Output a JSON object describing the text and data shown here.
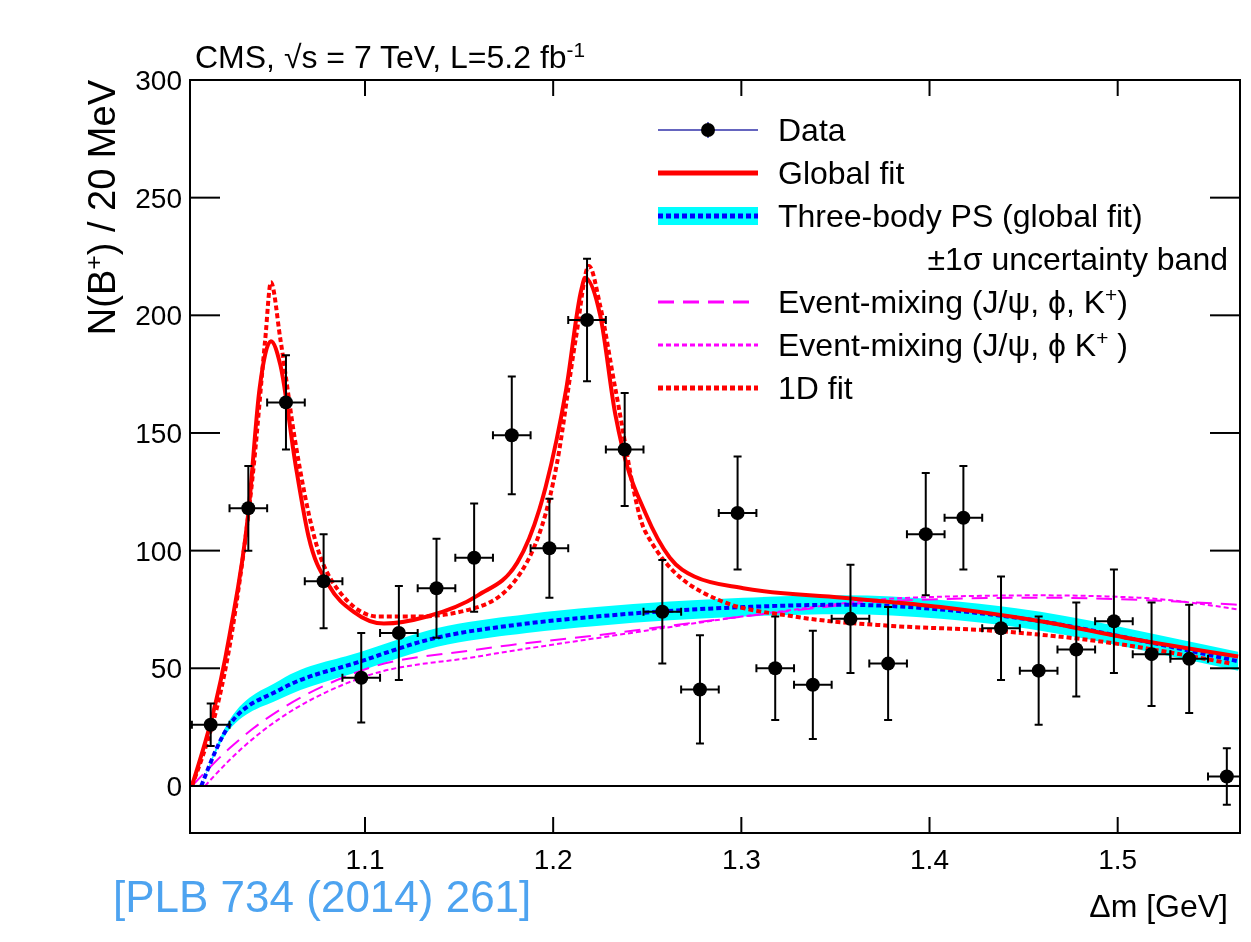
{
  "chart_data": {
    "type": "scatter",
    "title": "CMS, √s = 7 TeV, L=5.2 fb$^{-1}$",
    "xlabel": "Δm [GeV]",
    "ylabel": "N(B$^{+}$) / 20 MeV",
    "annotations": [
      "[PLB 734 (2014) 261]"
    ],
    "xlim": [
      1.007,
      1.565
    ],
    "xticks": [
      1.1,
      1.2,
      1.3,
      1.4,
      1.5
    ],
    "ylim": [
      -20,
      300
    ],
    "yticks": [
      0,
      50,
      100,
      150,
      200,
      250,
      300
    ],
    "grid": false,
    "legend": "top right",
    "ref_lines": [
      {
        "axis": "y",
        "value": 0,
        "color": "#000000"
      }
    ],
    "series": [
      {
        "name": "Data",
        "color": "#000000",
        "marker": "circle",
        "x": [
          1.018,
          1.038,
          1.058,
          1.078,
          1.098,
          1.118,
          1.138,
          1.158,
          1.178,
          1.198,
          1.218,
          1.238,
          1.258,
          1.278,
          1.298,
          1.318,
          1.338,
          1.358,
          1.378,
          1.398,
          1.418,
          1.438,
          1.458,
          1.478,
          1.498,
          1.518,
          1.538,
          1.558
        ],
        "values": [
          26,
          118,
          163,
          87,
          46,
          65,
          84,
          97,
          149,
          101,
          198,
          143,
          74,
          41,
          116,
          50,
          43,
          71,
          52,
          107,
          114,
          67,
          49,
          58,
          70,
          56,
          54,
          4
        ],
        "errors": [
          9,
          18,
          20,
          20,
          19,
          20,
          21,
          23,
          25,
          21,
          26,
          24,
          22,
          23,
          24,
          22,
          23,
          23,
          24,
          26,
          22,
          22,
          23,
          20,
          22,
          22,
          23,
          12
        ],
        "xerrors": [
          0.01,
          0.01,
          0.01,
          0.01,
          0.01,
          0.01,
          0.01,
          0.01,
          0.01,
          0.01,
          0.01,
          0.01,
          0.01,
          0.01,
          0.01,
          0.01,
          0.01,
          0.01,
          0.01,
          0.01,
          0.01,
          0.01,
          0.01,
          0.01,
          0.01,
          0.01,
          0.01,
          0.01
        ]
      },
      {
        "name": "Global fit",
        "type": "line",
        "color": "#ff0000",
        "line_style": "solid",
        "x": [
          1.008,
          1.028,
          1.038,
          1.044,
          1.05,
          1.055,
          1.063,
          1.07,
          1.081,
          1.094,
          1.11,
          1.133,
          1.16,
          1.181,
          1.196,
          1.207,
          1.215,
          1.217,
          1.225,
          1.233,
          1.237,
          1.249,
          1.262,
          1.275,
          1.301,
          1.354,
          1.406,
          1.459,
          1.511,
          1.564
        ],
        "values": [
          0,
          64,
          116,
          169,
          189,
          179,
          137,
          106,
          85,
          74,
          69,
          72,
          81,
          95,
          127,
          169,
          211,
          216,
          200,
          158,
          143,
          116,
          97,
          89,
          84,
          80,
          76,
          70,
          62,
          55
        ]
      },
      {
        "name": "Three-body PS (global fit)\n±1σ  uncertainty band",
        "type": "line",
        "color": "#0000ff",
        "line_style": "dotted",
        "x": [
          1.013,
          1.028,
          1.055,
          1.098,
          1.133,
          1.186,
          1.223,
          1.301,
          1.354,
          1.406,
          1.459,
          1.511,
          1.564
        ],
        "values": [
          0,
          26,
          41,
          53,
          62,
          69,
          72,
          76,
          77,
          75,
          70,
          62,
          53
        ],
        "lower": [
          0,
          24,
          37,
          49,
          58,
          65,
          68,
          72,
          73,
          71,
          66,
          58,
          49
        ],
        "upper": [
          0,
          28,
          45,
          57,
          66,
          73,
          76,
          80,
          81,
          79,
          74,
          66,
          57
        ]
      },
      {
        "name": "Event-mixing (J/ψ, ϕ, K$^{+}$)",
        "type": "line",
        "color": "#ff00ff",
        "line_style": "dashed",
        "x": [
          1.008,
          1.028,
          1.098,
          1.16,
          1.223,
          1.301,
          1.39,
          1.459,
          1.564
        ],
        "values": [
          0,
          16,
          49,
          58,
          64,
          72,
          79,
          80,
          77
        ]
      },
      {
        "name": "Event-mixing (J/ψ, ϕ K$^{+}$ )",
        "type": "line",
        "color": "#ff00ff",
        "line_style": "dotted",
        "x": [
          1.015,
          1.028,
          1.098,
          1.16,
          1.233,
          1.31,
          1.39,
          1.459,
          1.511,
          1.564
        ],
        "values": [
          0,
          11,
          46,
          55,
          64,
          73,
          80,
          81,
          80,
          75
        ]
      },
      {
        "name": "1D fit",
        "type": "line",
        "color": "#ff0000",
        "line_style": "dotted",
        "x": [
          1.008,
          1.031,
          1.041,
          1.047,
          1.05,
          1.055,
          1.063,
          1.073,
          1.086,
          1.107,
          1.128,
          1.16,
          1.186,
          1.202,
          1.212,
          1.219,
          1.225,
          1.233,
          1.249,
          1.288,
          1.328,
          1.38,
          1.433,
          1.485,
          1.56
        ],
        "values": [
          0,
          74,
          137,
          190,
          214,
          190,
          146,
          106,
          83,
          72,
          72,
          76,
          95,
          137,
          190,
          221,
          204,
          169,
          108,
          79,
          72,
          68,
          66,
          62,
          52
        ]
      }
    ]
  }
}
